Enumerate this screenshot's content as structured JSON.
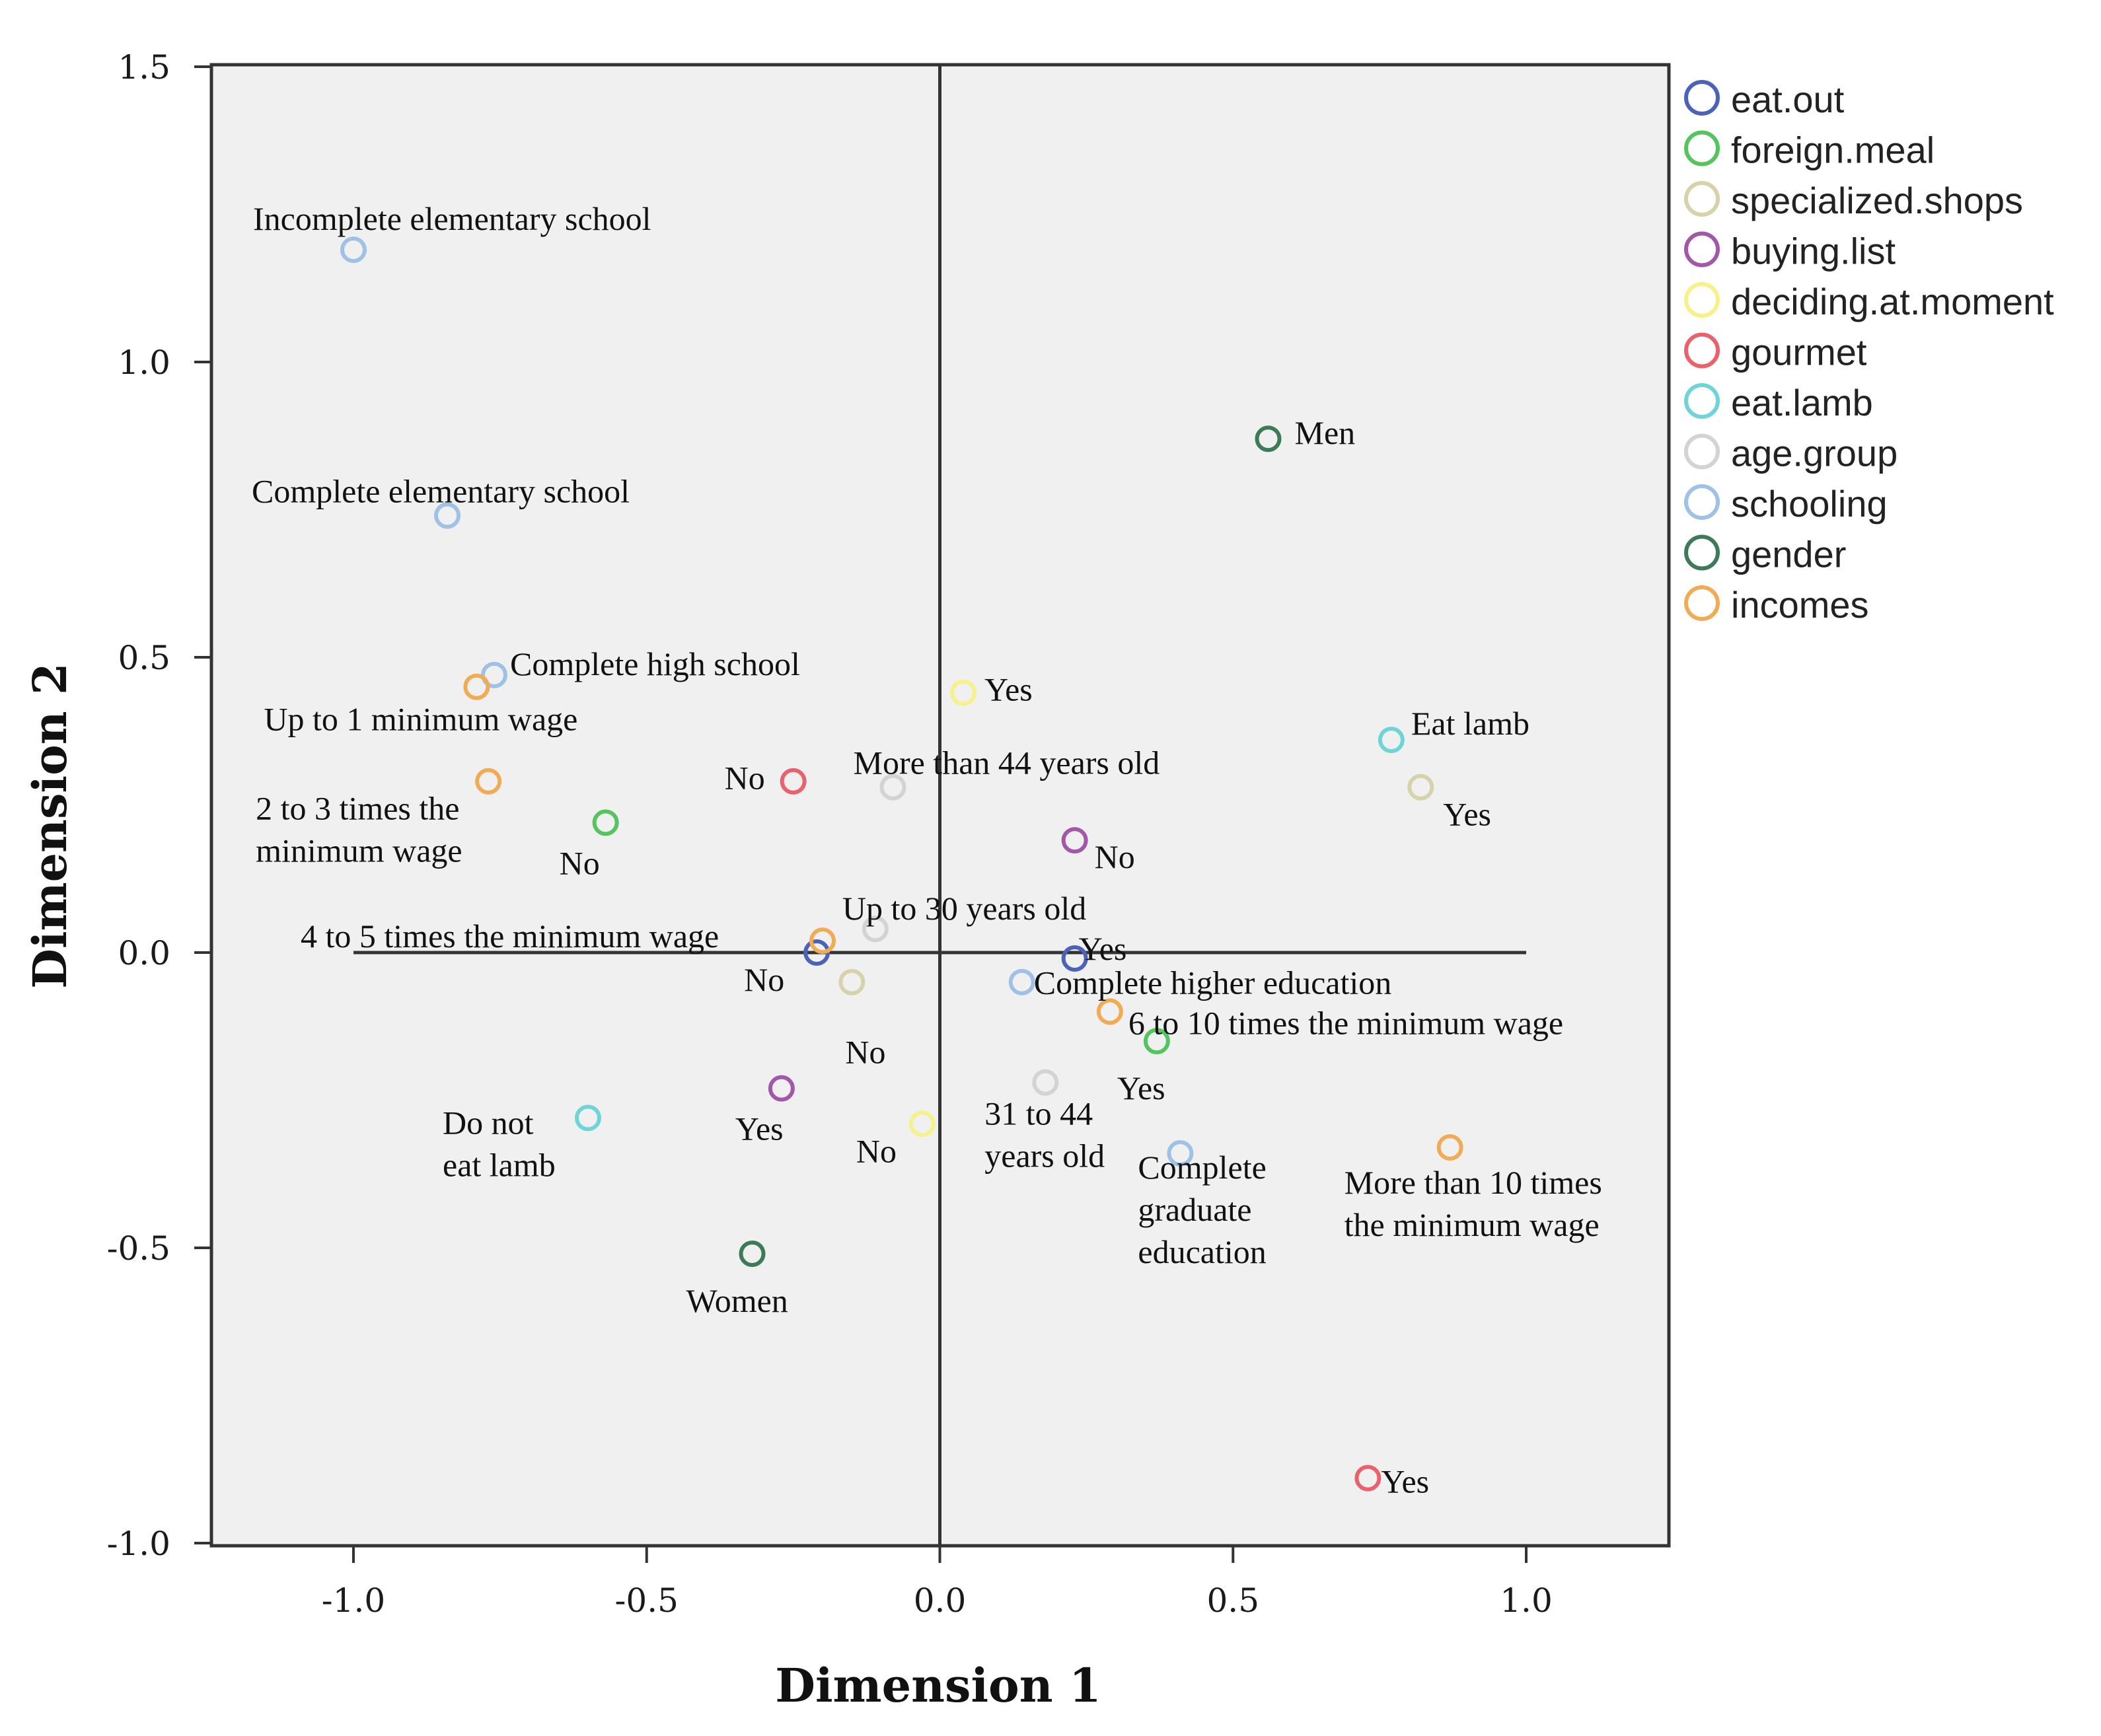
{
  "chart_data": {
    "type": "scatter",
    "title": "",
    "xlabel": "Dimension 1",
    "ylabel": "Dimension 2",
    "xlim": [
      -1.25,
      1.25
    ],
    "ylim": [
      -1.0,
      1.5
    ],
    "xticks": [
      "-1.0",
      "-0.5",
      "0.0",
      "0.5",
      "1.0"
    ],
    "yticks": [
      "1.5",
      "1.0",
      "0.5",
      "0.0",
      "-0.5",
      "-1.0"
    ],
    "legend_position": "right",
    "series": [
      {
        "name": "eat.out",
        "color": "#4a63b8",
        "points": [
          {
            "x": -0.21,
            "y": 0.0,
            "label": [
              "No"
            ]
          },
          {
            "x": 0.23,
            "y": -0.01,
            "label": [
              "Yes"
            ]
          }
        ]
      },
      {
        "name": "foreign.meal",
        "color": "#54c45e",
        "points": [
          {
            "x": -0.57,
            "y": 0.22,
            "label": [
              "No"
            ]
          },
          {
            "x": 0.37,
            "y": -0.15,
            "label": [
              "Yes"
            ]
          }
        ]
      },
      {
        "name": "specialized.shops",
        "color": "#d6d2aa",
        "points": [
          {
            "x": -0.15,
            "y": -0.05,
            "label": [
              "No"
            ]
          },
          {
            "x": 0.82,
            "y": 0.28,
            "label": [
              "Yes"
            ]
          }
        ]
      },
      {
        "name": "buying.list",
        "color": "#a357a8",
        "points": [
          {
            "x": 0.23,
            "y": 0.19,
            "label": [
              "No"
            ]
          },
          {
            "x": -0.27,
            "y": -0.23,
            "label": [
              "Yes"
            ]
          }
        ]
      },
      {
        "name": "deciding.at.moment",
        "color": "#f7f18a",
        "points": [
          {
            "x": 0.04,
            "y": 0.44,
            "label": [
              "Yes"
            ]
          },
          {
            "x": -0.03,
            "y": -0.29,
            "label": [
              "No"
            ]
          }
        ]
      },
      {
        "name": "gourmet",
        "color": "#e8616b",
        "points": [
          {
            "x": -0.25,
            "y": 0.29,
            "label": [
              "No"
            ]
          },
          {
            "x": 0.73,
            "y": -0.89,
            "label": [
              "Yes"
            ]
          }
        ]
      },
      {
        "name": "eat.lamb",
        "color": "#6fd4d8",
        "points": [
          {
            "x": 0.77,
            "y": 0.36,
            "label": [
              "Eat lamb"
            ]
          },
          {
            "x": -0.6,
            "y": -0.28,
            "label": [
              "Do not",
              "eat lamb"
            ]
          }
        ]
      },
      {
        "name": "age.group",
        "color": "#d3d3d3",
        "points": [
          {
            "x": -0.08,
            "y": 0.28,
            "label": [
              "More than 44 years old"
            ]
          },
          {
            "x": -0.11,
            "y": 0.04,
            "label": [
              "Up to 30 years old"
            ]
          },
          {
            "x": 0.18,
            "y": -0.22,
            "label": [
              "31 to 44",
              "years old"
            ]
          }
        ]
      },
      {
        "name": "schooling",
        "color": "#9fc1e6",
        "points": [
          {
            "x": -1.0,
            "y": 1.19,
            "label": [
              "Incomplete elementary school"
            ]
          },
          {
            "x": -0.84,
            "y": 0.74,
            "label": [
              "Complete elementary school"
            ]
          },
          {
            "x": -0.76,
            "y": 0.47,
            "label": [
              "Complete high school"
            ]
          },
          {
            "x": 0.14,
            "y": -0.05,
            "label": [
              "Complete higher education"
            ]
          },
          {
            "x": 0.41,
            "y": -0.34,
            "label": [
              "Complete",
              "graduate",
              "education"
            ]
          }
        ]
      },
      {
        "name": "gender",
        "color": "#3d7a57",
        "points": [
          {
            "x": 0.56,
            "y": 0.87,
            "label": [
              "Men"
            ]
          },
          {
            "x": -0.32,
            "y": -0.51,
            "label": [
              "Women"
            ]
          }
        ]
      },
      {
        "name": "incomes",
        "color": "#f2ab55",
        "points": [
          {
            "x": -0.79,
            "y": 0.45,
            "label": [
              "Up to 1 minimum wage"
            ]
          },
          {
            "x": -0.77,
            "y": 0.29,
            "label": [
              "2 to 3 times the",
              "minimum wage"
            ]
          },
          {
            "x": -0.2,
            "y": 0.02,
            "label": [
              "4 to 5 times the minimum wage"
            ]
          },
          {
            "x": 0.29,
            "y": -0.1,
            "label": [
              "6 to 10 times the minimum wage"
            ]
          },
          {
            "x": 0.87,
            "y": -0.33,
            "label": [
              "More than 10 times",
              "the minimum wage"
            ]
          }
        ]
      }
    ]
  }
}
